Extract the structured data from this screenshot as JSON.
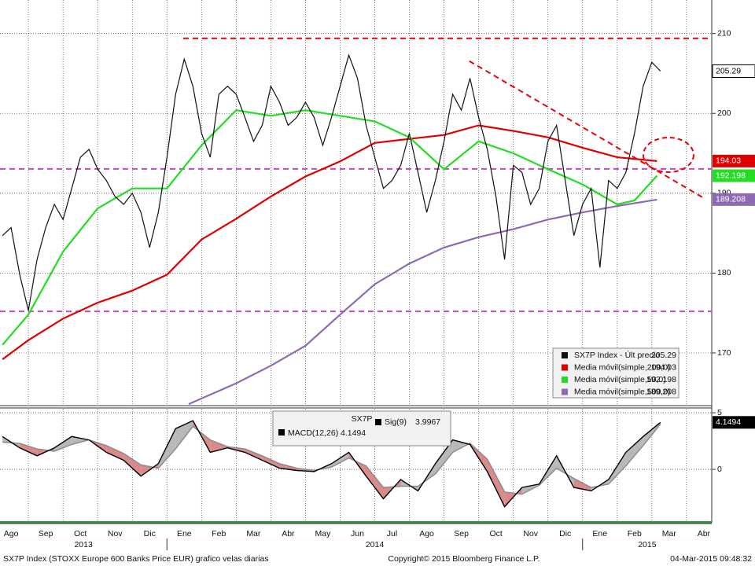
{
  "chart_data": [
    {
      "type": "line",
      "xlim": [
        0.18,
        20.73
      ],
      "ylim": [
        163.5,
        214.2
      ],
      "yticks": [
        170,
        180,
        190,
        200,
        210
      ],
      "grid": true,
      "series": [
        {
          "name": "SX7P Index - Últ precio",
          "color": "#111111",
          "value_box": true,
          "x": [
            0.25,
            0.5,
            0.75,
            1,
            1.25,
            1.5,
            1.75,
            2,
            2.25,
            2.5,
            2.75,
            3,
            3.25,
            3.5,
            3.75,
            4,
            4.25,
            4.5,
            4.75,
            5,
            5.25,
            5.5,
            5.75,
            6,
            6.25,
            6.5,
            6.75,
            7,
            7.25,
            7.5,
            7.75,
            8,
            8.25,
            8.5,
            8.75,
            9,
            9.25,
            9.5,
            9.75,
            10,
            10.25,
            10.5,
            10.75,
            11,
            11.25,
            11.5,
            11.75,
            12,
            12.25,
            12.5,
            12.75,
            13,
            13.25,
            13.5,
            13.75,
            14,
            14.25,
            14.5,
            14.75,
            15,
            15.25,
            15.5,
            15.75,
            16,
            16.25,
            16.5,
            16.75,
            17,
            17.25,
            17.5,
            17.75,
            18,
            18.25,
            18.5,
            18.75,
            19,
            19.25
          ],
          "values": [
            184.7,
            185.7,
            179.8,
            175.3,
            181.7,
            185.7,
            188.6,
            186.7,
            190.6,
            194.5,
            195.5,
            193,
            191.6,
            189.6,
            188.6,
            190,
            187.6,
            183.2,
            187.6,
            194.5,
            202.4,
            206.8,
            203.4,
            197.5,
            194.5,
            202.4,
            203.4,
            202.4,
            199.5,
            196.5,
            198.5,
            203.4,
            201.4,
            198.5,
            199.5,
            201.4,
            199.5,
            196,
            199.5,
            203.4,
            207.3,
            204.4,
            198.5,
            194.5,
            190.6,
            191.6,
            193.5,
            197.5,
            192.6,
            187.6,
            191.6,
            196.5,
            202.4,
            200.4,
            204.4,
            199.5,
            195.5,
            189.6,
            181.7,
            193.5,
            192.6,
            188.6,
            190.6,
            196.5,
            198.5,
            191.6,
            184.7,
            188.6,
            190.6,
            180.7,
            191.6,
            190.6,
            192.6,
            197.5,
            203.4,
            206.4,
            205.29
          ]
        },
        {
          "name": "Media móvil(simple,200,0)",
          "color": "#e00000",
          "value_box": true,
          "x": [
            0.25,
            1,
            2,
            3,
            4,
            5,
            6,
            7,
            8,
            9,
            10,
            11,
            12,
            13,
            14,
            15,
            16,
            17,
            18,
            19.15
          ],
          "values": [
            169.2,
            171.6,
            174.3,
            176.3,
            177.8,
            179.8,
            184.2,
            186.8,
            189.6,
            192.1,
            194,
            196.3,
            196.8,
            197.3,
            198.5,
            197.8,
            197,
            195.7,
            194.5,
            194.03
          ]
        },
        {
          "name": "Media móvil(simple,50,0)",
          "color": "#22dd22",
          "value_box": true,
          "x": [
            0.25,
            1,
            2,
            3,
            4,
            5,
            6,
            7,
            8,
            9,
            10,
            11,
            12,
            13,
            14,
            15,
            16,
            17,
            18,
            18.5,
            19.15
          ],
          "values": [
            171,
            174.8,
            182.7,
            188.1,
            190.6,
            190.6,
            196,
            200.4,
            199.7,
            200.4,
            199.7,
            199,
            197,
            193,
            196.5,
            195,
            193,
            191.1,
            188.6,
            189.1,
            192.198
          ]
        },
        {
          "name": "Media móvil(simple,500,0)",
          "color": "#8c6bb1",
          "value_box": true,
          "x": [
            5.63,
            6,
            7,
            8,
            9,
            10,
            11,
            12,
            13,
            14,
            15,
            16,
            17,
            18,
            19.15
          ],
          "values": [
            163.6,
            164.3,
            166.2,
            168.4,
            170.9,
            174.8,
            178.6,
            181.2,
            183.2,
            184.5,
            185.5,
            186.7,
            187.6,
            188.4,
            189.208
          ]
        }
      ],
      "reference_lines": [
        {
          "y": 209.4,
          "x_from": 5.47,
          "color": "#e8000b"
        },
        {
          "y": 193.05,
          "color": "#cc44cc"
        },
        {
          "y": 175.2,
          "color": "#cc44cc"
        }
      ],
      "trend_line": {
        "x": [
          13.73,
          20.5
        ],
        "y": [
          206.55,
          189.4
        ],
        "color": "#e8000b"
      }
    },
    {
      "type": "macd",
      "legend_title": "SX7P",
      "xlim": [
        0.18,
        20.73
      ],
      "ylim": [
        -4.58,
        5.35
      ],
      "yticks": [
        0,
        5
      ],
      "grid": true,
      "xticks": [
        {
          "value": 0,
          "label": "Ago"
        },
        {
          "value": 1,
          "label": "Sep"
        },
        {
          "value": 2,
          "label": "Oct"
        },
        {
          "value": 3,
          "label": "Nov"
        },
        {
          "value": 4,
          "label": "Dic"
        },
        {
          "value": 5,
          "label": "Ene"
        },
        {
          "value": 6,
          "label": "Feb"
        },
        {
          "value": 7,
          "label": "Mar"
        },
        {
          "value": 8,
          "label": "Abr"
        },
        {
          "value": 9,
          "label": "May"
        },
        {
          "value": 10,
          "label": "Jun"
        },
        {
          "value": 11,
          "label": "Jul"
        },
        {
          "value": 12,
          "label": "Ago"
        },
        {
          "value": 13,
          "label": "Sep"
        },
        {
          "value": 14,
          "label": "Oct"
        },
        {
          "value": 15,
          "label": "Nov"
        },
        {
          "value": 16,
          "label": "Dic"
        },
        {
          "value": 17,
          "label": "Ene"
        },
        {
          "value": 18,
          "label": "Feb"
        },
        {
          "value": 19,
          "label": "Mar"
        },
        {
          "value": 20,
          "label": "Abr"
        }
      ],
      "year_breaks": [
        5,
        17
      ],
      "years": [
        "2013",
        "2014",
        "2015"
      ],
      "series": [
        {
          "name": "MACD(12,26)",
          "color": "#000000",
          "value_box": true,
          "x": [
            0.25,
            0.75,
            1.25,
            1.75,
            2.25,
            2.75,
            3.25,
            3.75,
            4.25,
            4.75,
            5.25,
            5.75,
            6.25,
            6.75,
            7.25,
            7.75,
            8.25,
            8.75,
            9.25,
            9.75,
            10.25,
            10.75,
            11.25,
            11.75,
            12.25,
            12.75,
            13.25,
            13.75,
            14.25,
            14.75,
            15.25,
            15.75,
            16.25,
            16.75,
            17.25,
            17.75,
            18.25,
            18.75,
            19.25
          ],
          "values": [
            2.9,
            1.9,
            1.2,
            1.9,
            2.9,
            2.6,
            1.5,
            0.8,
            -0.6,
            0.5,
            3.6,
            4.3,
            1.5,
            1.9,
            1.5,
            0.8,
            0.1,
            -0.1,
            -0.2,
            0.5,
            1.5,
            -0.6,
            -2.6,
            -0.9,
            -1.9,
            0.5,
            2.6,
            2.2,
            -0.2,
            -3.3,
            -1.6,
            -1.3,
            1.2,
            -1.6,
            -1.9,
            -0.9,
            1.5,
            2.9,
            4.1494
          ]
        },
        {
          "name": "Sig(9)",
          "color": "#8a8a8a",
          "x": [
            0.25,
            0.75,
            1.25,
            1.75,
            2.25,
            2.75,
            3.25,
            3.75,
            4.25,
            4.75,
            5.25,
            5.75,
            6.25,
            6.75,
            7.25,
            7.75,
            8.25,
            8.75,
            9.25,
            9.75,
            10.25,
            10.75,
            11.25,
            11.75,
            12.25,
            12.75,
            13.25,
            13.75,
            14.25,
            14.75,
            15.25,
            15.75,
            16.25,
            16.75,
            17.25,
            17.75,
            18.25,
            18.75,
            19.25
          ],
          "values": [
            2.4,
            2.3,
            1.8,
            1.6,
            2.2,
            2.6,
            2.1,
            1.4,
            0.4,
            0.1,
            1.8,
            3.8,
            2.6,
            2.0,
            1.8,
            1.2,
            0.5,
            0.1,
            -0.1,
            0.2,
            1.0,
            0.3,
            -1.6,
            -1.5,
            -1.5,
            -0.4,
            1.5,
            2.3,
            0.9,
            -2.0,
            -2.2,
            -1.4,
            0.1,
            -0.8,
            -1.6,
            -1.3,
            0.3,
            2.1,
            3.9967
          ]
        }
      ]
    }
  ],
  "footer": {
    "left": "SX7P Index (STOXX Europe 600 Banks Price EUR) grafico velas diarias",
    "center": "Copyright© 2015 Bloomberg Finance L.P.",
    "right": "04-Mar-2015 09:48:32"
  }
}
